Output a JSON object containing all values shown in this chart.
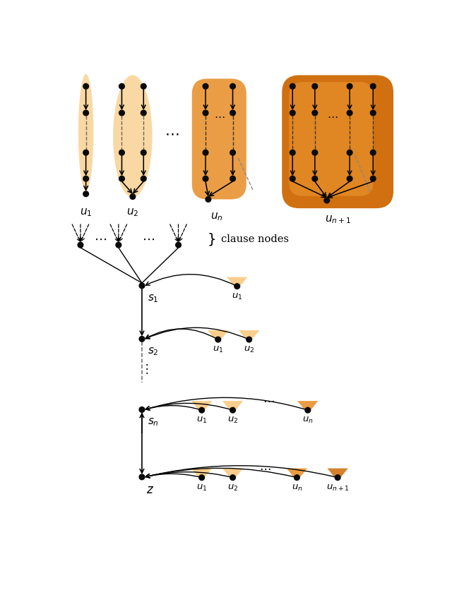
{
  "fig_width": 6.4,
  "fig_height": 8.54,
  "bg_color": "#ffffff",
  "light_orange": "#f9c87c",
  "medium_orange": "#e8902a",
  "dark_orange": "#d07010",
  "node_color": "#0a0a0a"
}
